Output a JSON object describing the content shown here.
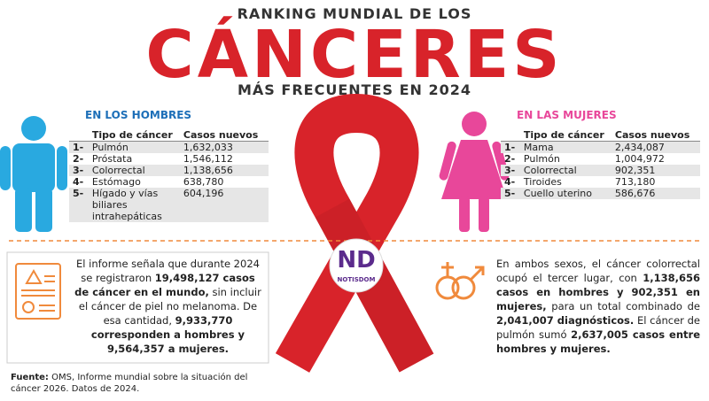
{
  "header": {
    "kicker": "RANKING MUNDIAL DE LOS",
    "title": "CÁNCERES",
    "subtitle": "MÁS FRECUENTES EN 2024"
  },
  "men": {
    "heading": "EN LOS HOMBRES",
    "columns": [
      "Tipo de cáncer",
      "Casos nuevos"
    ],
    "rows": [
      [
        "1-",
        "Pulmón",
        "1,632,033"
      ],
      [
        "2-",
        "Próstata",
        "1,546,112"
      ],
      [
        "3-",
        "Colorrectal",
        "1,138,656"
      ],
      [
        "4-",
        "Estómago",
        "638,780"
      ],
      [
        "5-",
        "Hígado y vías biliares intrahepáticas",
        "604,196"
      ]
    ]
  },
  "women": {
    "heading": "EN LAS MUJERES",
    "columns": [
      "Tipo de cáncer",
      "Casos nuevos"
    ],
    "rows": [
      [
        "1-",
        "Mama",
        "2,434,087"
      ],
      [
        "2-",
        "Pulmón",
        "1,004,972"
      ],
      [
        "3-",
        "Colorrectal",
        "902,351"
      ],
      [
        "4-",
        "Tiroides",
        "713,180"
      ],
      [
        "5-",
        "Cuello uterino",
        "586,676"
      ]
    ]
  },
  "logo": {
    "mark": "ND",
    "name": "NOTISDOM"
  },
  "left_note": {
    "segments": [
      {
        "text": "El informe señala que durante 2024 se registraron",
        "bold": false
      },
      {
        "text": "19,498,127 casos de cáncer en el mundo,",
        "bold": true
      },
      {
        "text": "sin incluir el cáncer de piel no melanoma. De esa cantidad,",
        "bold": false
      },
      {
        "text": "9,933,770 corresponden a hombres y 9,564,357 a mujeres.",
        "bold": true
      }
    ]
  },
  "right_note": {
    "segments": [
      {
        "text": "En ambos sexos, el cáncer colorrectal ocupó el tercer lugar, con",
        "bold": false
      },
      {
        "text": "1,138,656 casos en hombres y 902,351 en mujeres,",
        "bold": true
      },
      {
        "text": "para un total combinado de",
        "bold": false
      },
      {
        "text": "2,041,007 diagnósticos.",
        "bold": true
      },
      {
        "text": "El cáncer de pulmón sumó",
        "bold": false
      },
      {
        "text": "2,637,005 casos entre hombres y mujeres.",
        "bold": true
      }
    ]
  },
  "source": {
    "label": "Fuente:",
    "text": "OMS, Informe mundial sobre la situación del cáncer 2026. Datos de 2024."
  }
}
